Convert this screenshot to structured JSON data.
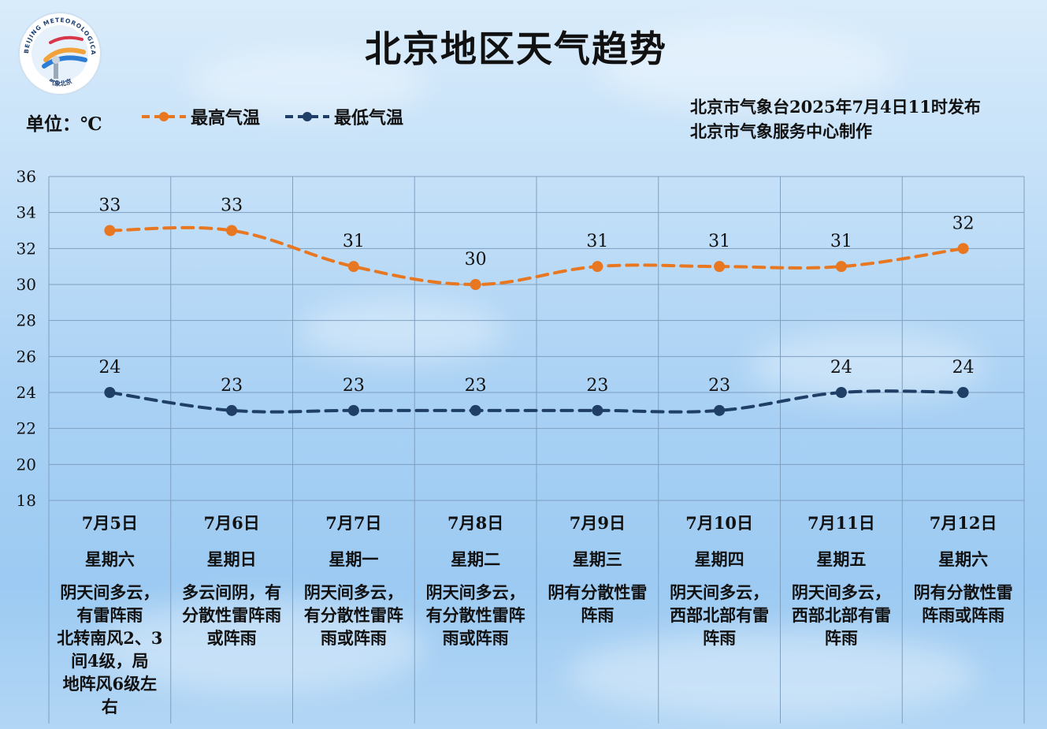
{
  "title": "北京地区天气趋势",
  "unit_label": "单位：℃",
  "issuer": {
    "line1": "北京市气象台2025年7月4日11时发布",
    "line2": "北京市气象服务中心制作"
  },
  "logo": {
    "icon": "beijing-meteorological-service-logo",
    "text_en": "BEIJING METEOROLOGICAL SERVICE",
    "text_cn": "气象北京"
  },
  "colors": {
    "high": "#e87722",
    "low": "#1f3f66",
    "grid": "#7f9fbf"
  },
  "chart_data": {
    "type": "line",
    "categories": [
      "7月5日",
      "7月6日",
      "7月7日",
      "7月8日",
      "7月9日",
      "7月10日",
      "7月11日",
      "7月12日"
    ],
    "ylim": [
      18,
      36
    ],
    "yticks": [
      18,
      20,
      22,
      24,
      26,
      28,
      30,
      32,
      34,
      36
    ],
    "grid": true,
    "legend_position": "top-left",
    "series": [
      {
        "name": "最高气温",
        "values": [
          33,
          33,
          31,
          30,
          31,
          31,
          31,
          32
        ]
      },
      {
        "name": "最低气温",
        "values": [
          24,
          23,
          23,
          23,
          23,
          23,
          24,
          24
        ]
      }
    ]
  },
  "days": [
    {
      "date": "7月5日",
      "weekday": "星期六",
      "desc": [
        "阴天间多云，",
        "有雷阵雨",
        "北转南风2、3",
        "间4级，局",
        "地阵风6级左",
        "右"
      ]
    },
    {
      "date": "7月6日",
      "weekday": "星期日",
      "desc": [
        "多云间阴，有",
        "分散性雷阵雨",
        "或阵雨"
      ]
    },
    {
      "date": "7月7日",
      "weekday": "星期一",
      "desc": [
        "阴天间多云，",
        "有分散性雷阵",
        "雨或阵雨"
      ]
    },
    {
      "date": "7月8日",
      "weekday": "星期二",
      "desc": [
        "阴天间多云，",
        "有分散性雷阵",
        "雨或阵雨"
      ]
    },
    {
      "date": "7月9日",
      "weekday": "星期三",
      "desc": [
        "阴有分散性雷",
        "阵雨"
      ]
    },
    {
      "date": "7月10日",
      "weekday": "星期四",
      "desc": [
        "阴天间多云，",
        "西部北部有雷",
        "阵雨"
      ]
    },
    {
      "date": "7月11日",
      "weekday": "星期五",
      "desc": [
        "阴天间多云，",
        "西部北部有雷",
        "阵雨"
      ]
    },
    {
      "date": "7月12日",
      "weekday": "星期六",
      "desc": [
        "阴有分散性雷",
        "阵雨或阵雨"
      ]
    }
  ]
}
